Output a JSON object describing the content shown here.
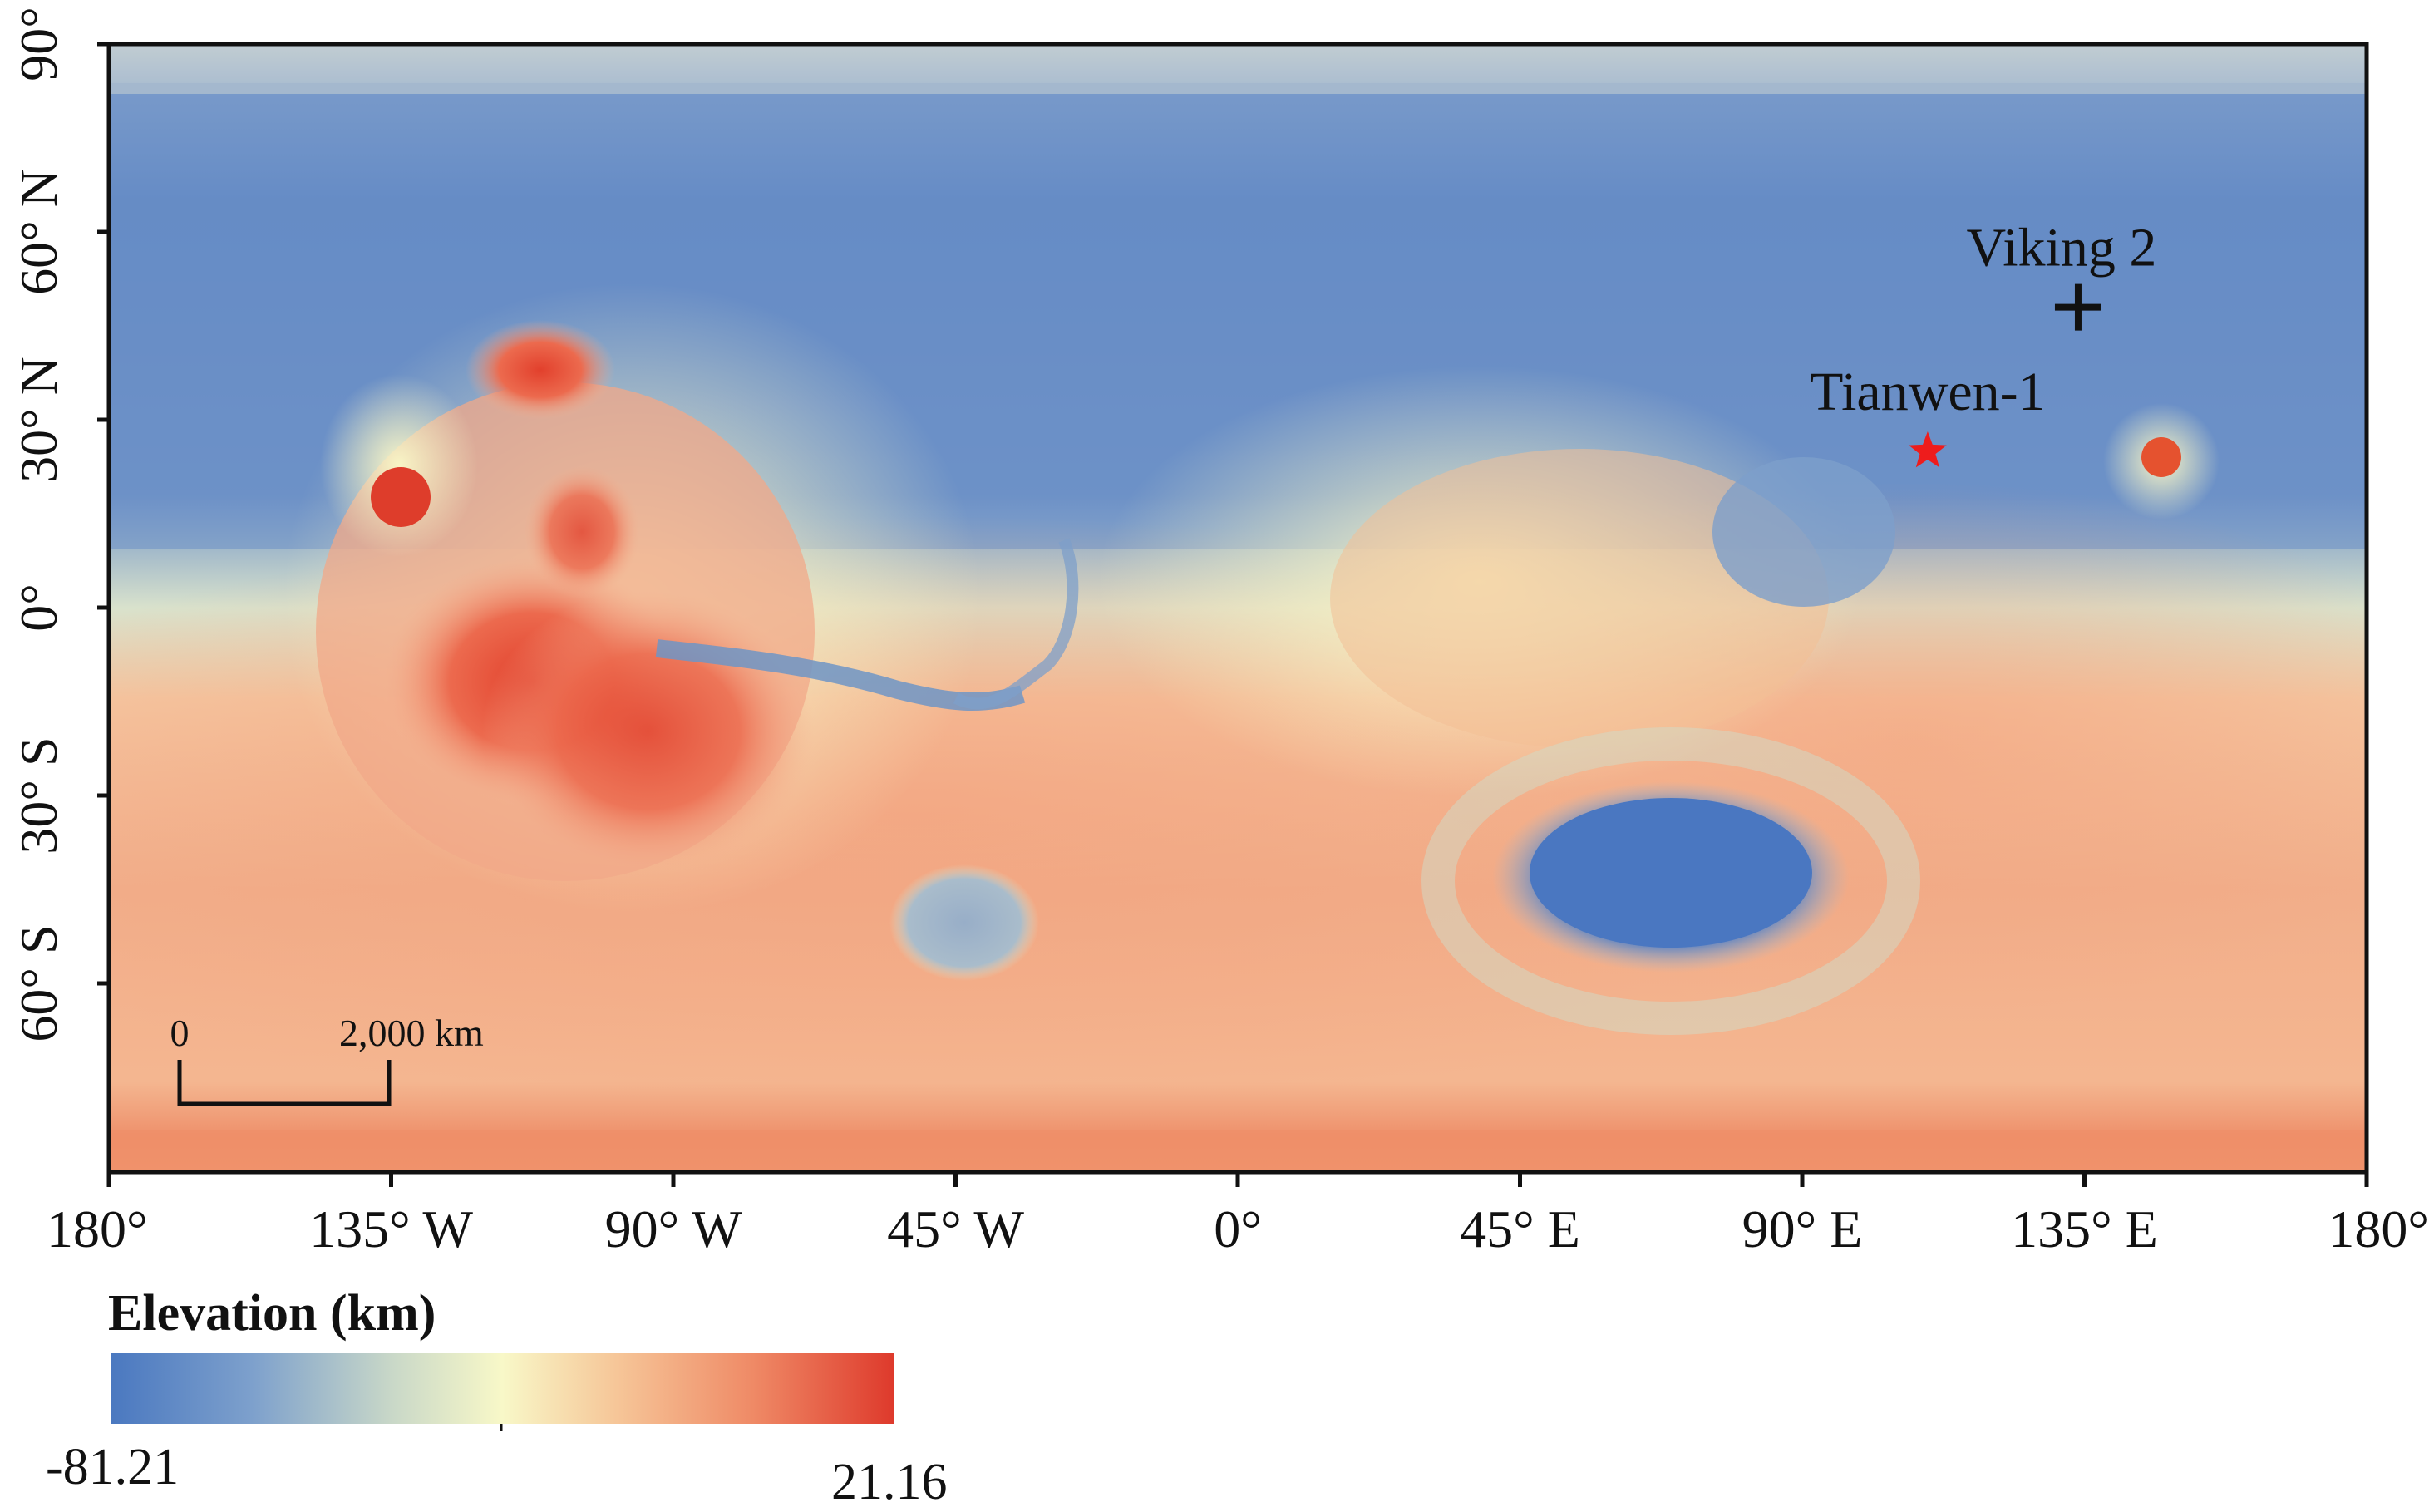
{
  "map": {
    "latitude_ticks": [
      "90°",
      "60° N",
      "30° N",
      "0°",
      "30° S",
      "60° S"
    ],
    "longitude_ticks": [
      "180°",
      "135° W",
      "90° W",
      "45° W",
      "0°",
      "45° E",
      "90° E",
      "135° E",
      "180°"
    ],
    "sites": [
      {
        "name": "Viking 2",
        "lon": 134,
        "lat": 48,
        "marker": "cross",
        "color": "#111111"
      },
      {
        "name": "Tianwen-1",
        "lon": 110,
        "lat": 25,
        "marker": "star",
        "color": "#ee1c1c"
      }
    ],
    "scale_bar": {
      "start_label": "0",
      "end_label": "2,000 km"
    }
  },
  "legend": {
    "title": "Elevation (km)",
    "min_label": "-81.21",
    "max_label": "21.16",
    "colors": [
      "#4a78c0",
      "#7da0cc",
      "#c9d8c8",
      "#f8f8c8",
      "#f6c89a",
      "#ef8a66",
      "#de3a2c"
    ]
  }
}
